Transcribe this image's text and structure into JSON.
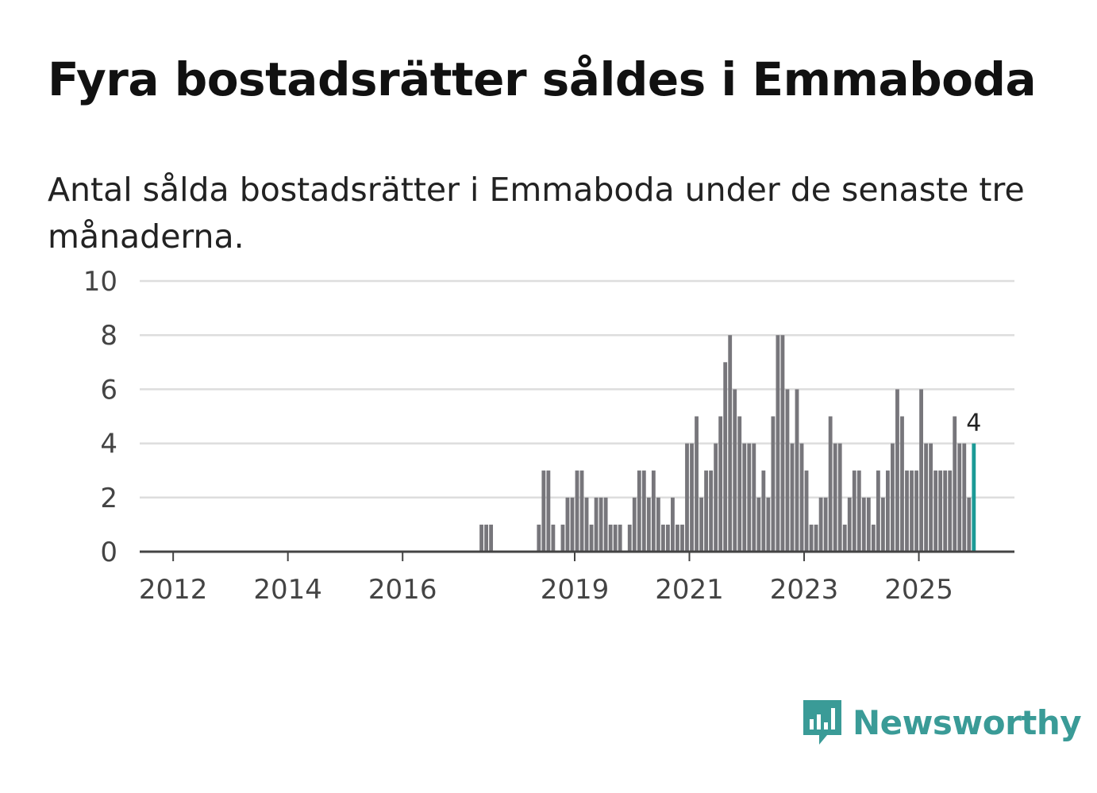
{
  "title": "Fyra bostadsrätter såldes i Emmaboda",
  "subtitle": "Antal sålda bostadsrätter i Emmaboda under de senaste tre månaderna.",
  "brand": {
    "name": "Newsworthy",
    "color": "#3a9b97",
    "icon": "newsworthy-chart-bubble-icon"
  },
  "colors": {
    "bar": "#77767b",
    "highlight": "#1b9a96",
    "grid": "#dddddd",
    "axis": "#444444"
  },
  "chart_data": {
    "type": "bar",
    "title": "Fyra bostadsrätter såldes i Emmaboda",
    "xlabel": "",
    "ylabel": "",
    "ylim": [
      0,
      10
    ],
    "yticks": [
      0,
      2,
      4,
      6,
      8,
      10
    ],
    "grid": true,
    "x_unit": "month",
    "x_start": "2011-06",
    "x_end": "2026-09",
    "xtick_labels": [
      {
        "label": "2012",
        "date": "2012-01"
      },
      {
        "label": "2014",
        "date": "2014-01"
      },
      {
        "label": "2016",
        "date": "2016-01"
      },
      {
        "label": "2019",
        "date": "2019-01"
      },
      {
        "label": "2021",
        "date": "2021-01"
      },
      {
        "label": "2023",
        "date": "2023-01"
      },
      {
        "label": "2025",
        "date": "2025-01"
      }
    ],
    "series": [
      {
        "name": "Antal sålda bostadsrätter",
        "start": "2017-05",
        "values": [
          1,
          1,
          1,
          0,
          0,
          0,
          0,
          0,
          0,
          0,
          0,
          0,
          1,
          3,
          3,
          1,
          0,
          1,
          2,
          2,
          3,
          3,
          2,
          1,
          2,
          2,
          2,
          1,
          1,
          1,
          0,
          1,
          2,
          3,
          3,
          2,
          3,
          2,
          1,
          1,
          2,
          1,
          1,
          4,
          4,
          5,
          2,
          3,
          3,
          4,
          5,
          7,
          8,
          6,
          5,
          4,
          4,
          4,
          2,
          3,
          2,
          5,
          8,
          8,
          6,
          4,
          6,
          4,
          3,
          1,
          1,
          2,
          2,
          5,
          4,
          4,
          1,
          2,
          3,
          3,
          2,
          2,
          1,
          3,
          2,
          3,
          4,
          6,
          5,
          3,
          3,
          3,
          6,
          4,
          4,
          3,
          3,
          3,
          3,
          5,
          4,
          4,
          2,
          4
        ]
      }
    ],
    "highlight": {
      "index": 103,
      "date": "2025-12",
      "value": 4,
      "label": "4"
    }
  }
}
